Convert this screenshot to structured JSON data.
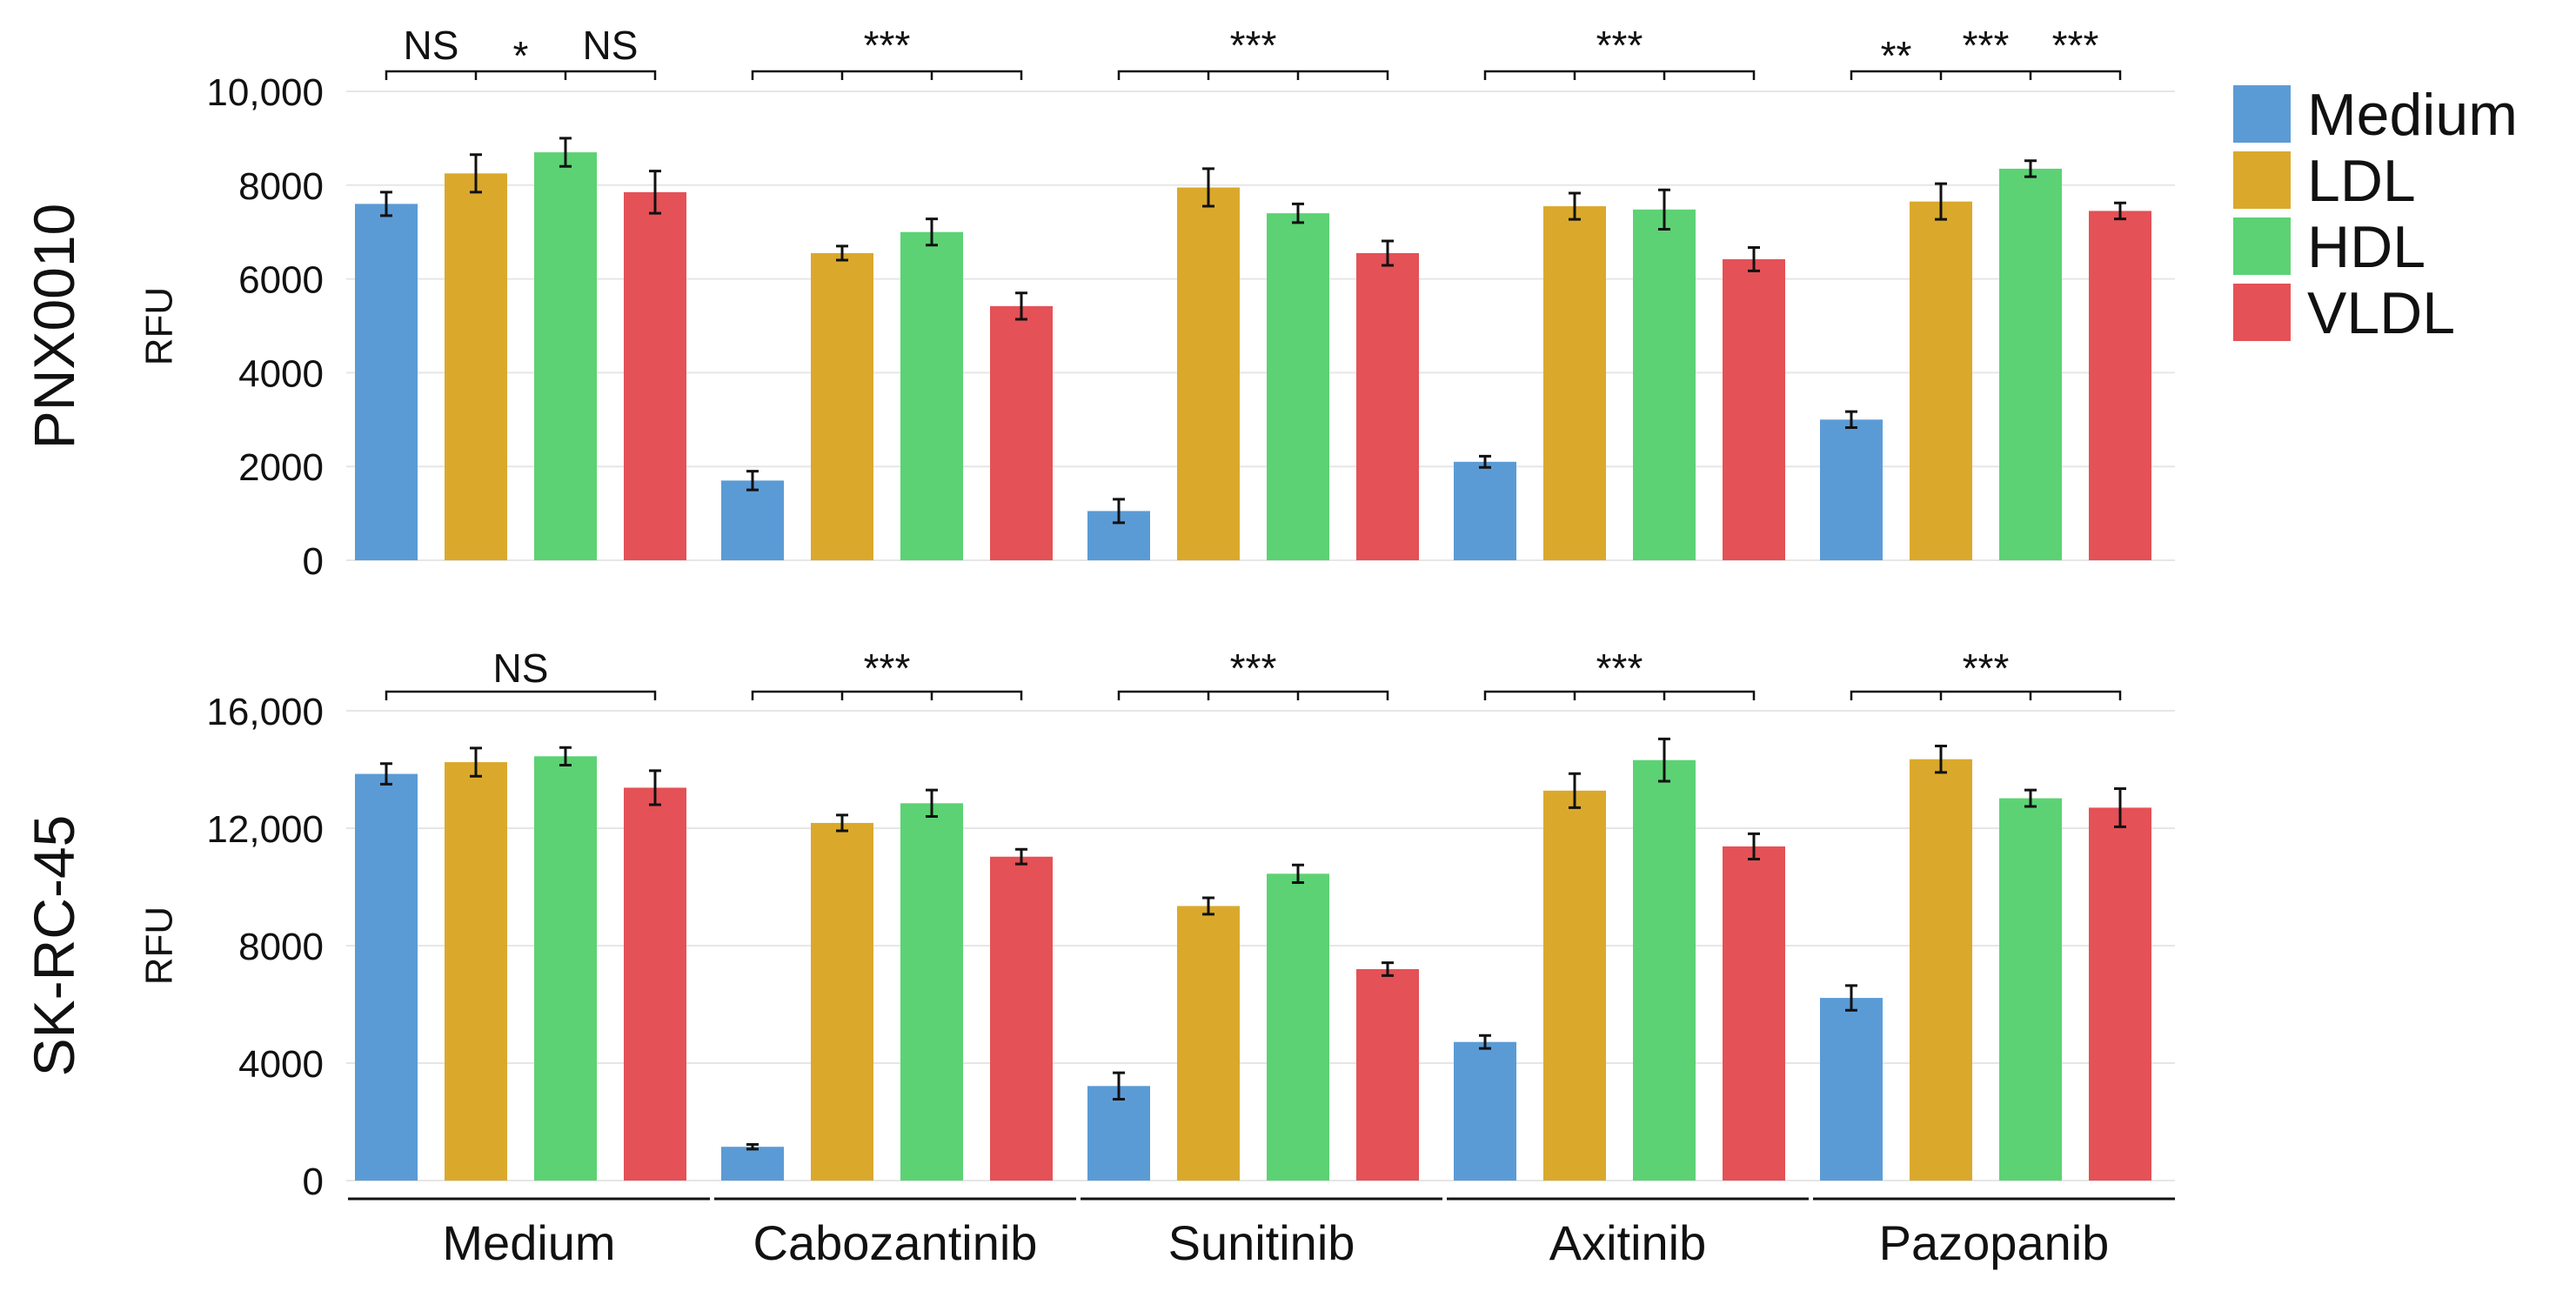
{
  "chart_data": {
    "type": "bar",
    "categories": [
      "Medium",
      "Cabozantinib",
      "Sunitinib",
      "Axitinib",
      "Pazopanib"
    ],
    "legend": {
      "position": "right",
      "entries": [
        {
          "name": "Medium",
          "color": "#5b9bd5"
        },
        {
          "name": "LDL",
          "color": "#daa92c"
        },
        {
          "name": "HDL",
          "color": "#5cd274"
        },
        {
          "name": "VLDL",
          "color": "#e45156"
        }
      ]
    },
    "panels": [
      {
        "title": "PNX0010",
        "ylabel": "RFU",
        "ylim": [
          0,
          10000
        ],
        "ticks": [
          0,
          2000,
          4000,
          6000,
          8000,
          10000
        ],
        "tick_labels": [
          "0",
          "2000",
          "4000",
          "6000",
          "8000",
          "10,000"
        ],
        "grid": true,
        "series": [
          {
            "name": "Medium",
            "values": [
              7600,
              1700,
              1050,
              2100,
              3000
            ],
            "errors": [
              250,
              200,
              250,
              120,
              170
            ]
          },
          {
            "name": "LDL",
            "values": [
              8250,
              6550,
              7950,
              7550,
              7650
            ],
            "errors": [
              400,
              150,
              400,
              280,
              380
            ]
          },
          {
            "name": "HDL",
            "values": [
              8700,
              7000,
              7400,
              7480,
              8350
            ],
            "errors": [
              300,
              280,
              200,
              420,
              170
            ]
          },
          {
            "name": "VLDL",
            "values": [
              7850,
              5420,
              6550,
              6420,
              7450
            ],
            "errors": [
              450,
              280,
              260,
              250,
              170
            ]
          }
        ],
        "significance": [
          {
            "labels": [
              "NS",
              "*",
              "NS"
            ]
          },
          {
            "labels": [
              "***"
            ]
          },
          {
            "labels": [
              "***"
            ]
          },
          {
            "labels": [
              "***"
            ]
          },
          {
            "labels": [
              "**",
              "***",
              "***"
            ]
          }
        ]
      },
      {
        "title": "SK-RC-45",
        "ylabel": "RFU",
        "ylim": [
          0,
          16000
        ],
        "ticks": [
          0,
          4000,
          8000,
          12000,
          16000
        ],
        "tick_labels": [
          "0",
          "4000",
          "8000",
          "12,000",
          "16,000"
        ],
        "grid": true,
        "series": [
          {
            "name": "Medium",
            "values": [
              13850,
              1150,
              3220,
              4720,
              6220
            ],
            "errors": [
              350,
              80,
              450,
              220,
              420
            ]
          },
          {
            "name": "LDL",
            "values": [
              14250,
              12180,
              9350,
              13280,
              14350
            ],
            "errors": [
              480,
              270,
              280,
              580,
              450
            ]
          },
          {
            "name": "HDL",
            "values": [
              14450,
              12850,
              10450,
              14320,
              13020
            ],
            "errors": [
              300,
              450,
              300,
              720,
              280
            ]
          },
          {
            "name": "VLDL",
            "values": [
              13380,
              11030,
              7200,
              11380,
              12700
            ],
            "errors": [
              580,
              250,
              220,
              430,
              650
            ]
          }
        ],
        "significance": [
          {
            "labels": [
              "NS"
            ]
          },
          {
            "labels": [
              "***"
            ]
          },
          {
            "labels": [
              "***"
            ]
          },
          {
            "labels": [
              "***"
            ]
          },
          {
            "labels": [
              "***"
            ]
          }
        ]
      }
    ]
  }
}
